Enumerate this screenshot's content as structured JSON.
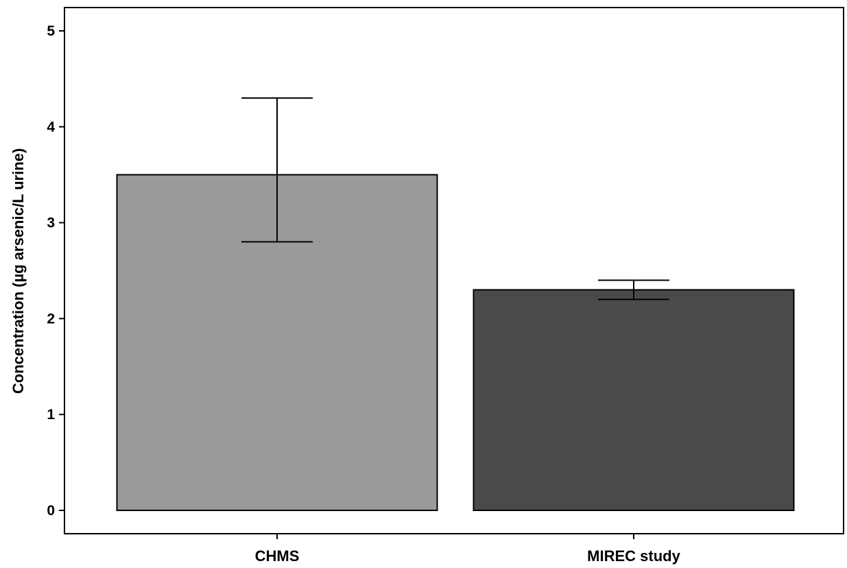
{
  "chart_data": {
    "type": "bar",
    "title": "",
    "xlabel": "",
    "ylabel": "Concentration (µg arsenic/L urine)",
    "categories": [
      "CHMS",
      "MIREC study"
    ],
    "values": [
      3.5,
      2.3
    ],
    "error_low": [
      2.8,
      2.2
    ],
    "error_high": [
      4.3,
      2.4
    ],
    "bar_colors": [
      "#9a9a9a",
      "#4a4a4a"
    ],
    "ylim": [
      0,
      5
    ],
    "yticks": [
      0,
      1,
      2,
      3,
      4,
      5
    ],
    "ytick_labels": [
      "0",
      "1",
      "2",
      "3",
      "4",
      "5"
    ],
    "grid": false,
    "legend": "none"
  }
}
